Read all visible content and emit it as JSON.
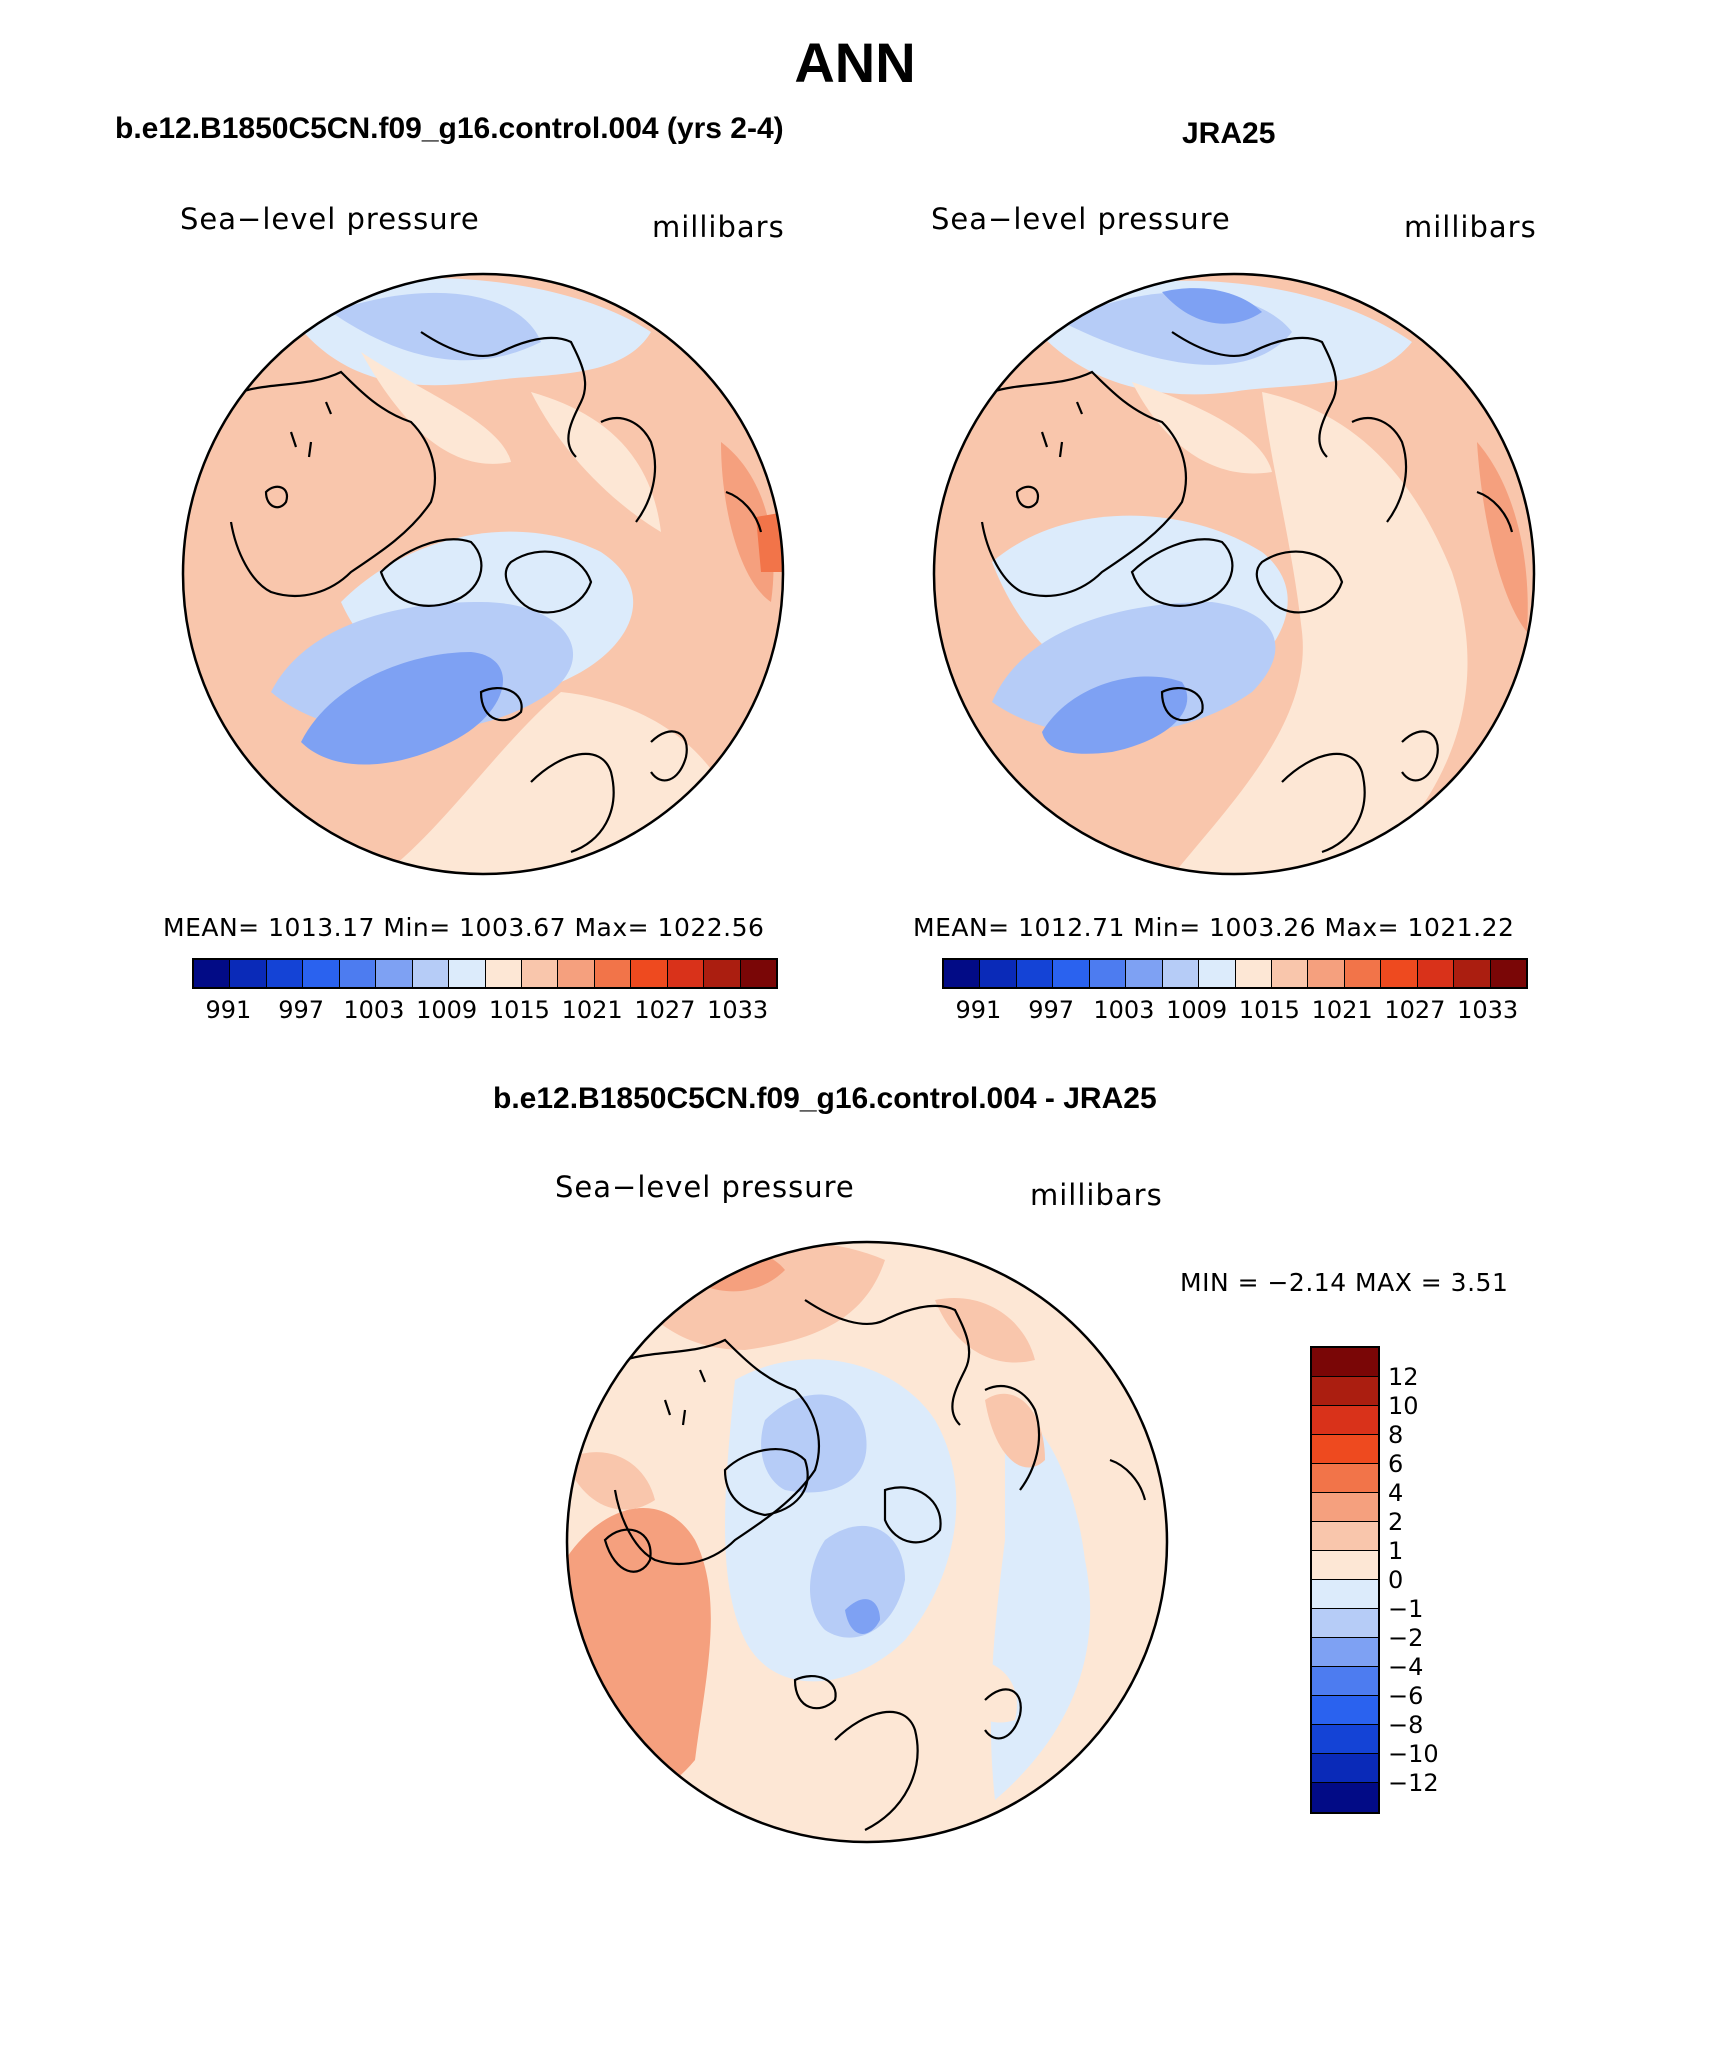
{
  "main_title": "ANN",
  "panels": [
    {
      "title": "b.e12.B1850C5CN.f09_g16.control.004 (yrs 2-4)",
      "var_label": "Sea−level pressure",
      "units": "millibars",
      "stats": "MEAN=  1013.17    Min=  1003.67    Max=  1022.56"
    },
    {
      "title": "JRA25",
      "var_label": "Sea−level pressure",
      "units": "millibars",
      "stats": "MEAN=  1012.71    Min=  1003.26    Max=  1021.22"
    },
    {
      "title": "b.e12.B1850C5CN.f09_g16.control.004 - JRA25",
      "var_label": "Sea−level pressure",
      "units": "millibars",
      "stats": "MIN =    −2.14  MAX =      3.51"
    }
  ],
  "colorbar_top": {
    "labels": [
      "991",
      "997",
      "1003",
      "1009",
      "1015",
      "1021",
      "1027",
      "1033"
    ],
    "colors": [
      "#020b86",
      "#0a2ab8",
      "#1443d6",
      "#2a62ef",
      "#4d7cf0",
      "#7ea1f3",
      "#b6ccf7",
      "#dcebfb",
      "#fde7d5",
      "#f9c6ac",
      "#f5a07e",
      "#f27449",
      "#ee4a1f",
      "#d9321a",
      "#ab1e10",
      "#7a0606"
    ]
  },
  "colorbar_diff": {
    "labels": [
      "12",
      "10",
      "8",
      "6",
      "4",
      "2",
      "1",
      "0",
      "−1",
      "−2",
      "−4",
      "−6",
      "−8",
      "−10",
      "−12"
    ],
    "colors": [
      "#7a0606",
      "#ab1e10",
      "#d9321a",
      "#ee4a1f",
      "#f27449",
      "#f5a07e",
      "#f9c6ac",
      "#fde7d5",
      "#dcebfb",
      "#b6ccf7",
      "#7ea1f3",
      "#4d7cf0",
      "#2a62ef",
      "#1443d6",
      "#0a2ab8",
      "#020b86"
    ]
  }
}
